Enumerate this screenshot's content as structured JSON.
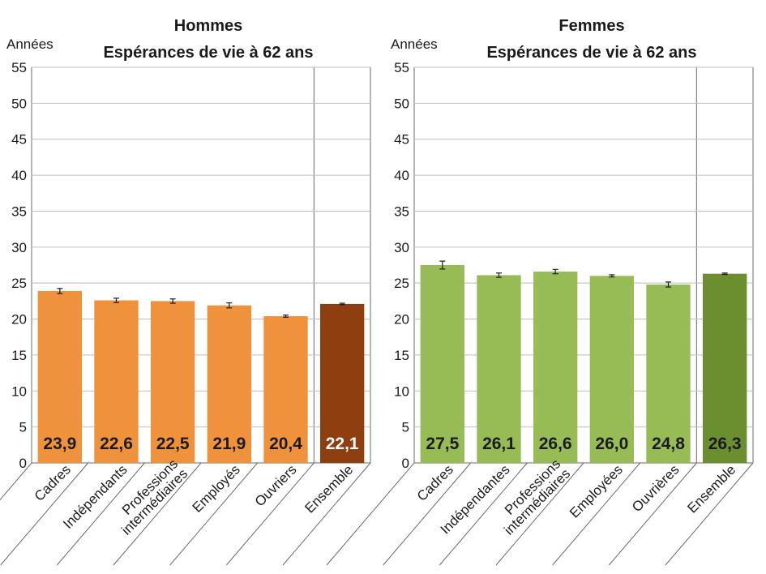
{
  "chart_data": [
    {
      "type": "bar",
      "title_line1": "Hommes",
      "title_line2": "Espérances de vie à 62 ans",
      "ylabel": "Années",
      "ylim": [
        0,
        55
      ],
      "yticks": [
        0,
        5,
        10,
        15,
        20,
        25,
        30,
        35,
        40,
        45,
        50,
        55
      ],
      "categories": [
        "Cadres",
        "Indépendants",
        "Professions intermédiaires",
        "Employés",
        "Ouvriers",
        "Ensemble"
      ],
      "category_lines": [
        [
          "Cadres"
        ],
        [
          "Indépendants"
        ],
        [
          "Professions",
          "intermédiaires"
        ],
        [
          "Employés"
        ],
        [
          "Ouvriers"
        ],
        [
          "Ensemble"
        ]
      ],
      "values": [
        23.9,
        22.6,
        22.5,
        21.9,
        20.4,
        22.1
      ],
      "value_labels": [
        "23,9",
        "22,6",
        "22,5",
        "21,9",
        "20,4",
        "22,1"
      ],
      "error": [
        0.35,
        0.3,
        0.3,
        0.35,
        0.15,
        0.1
      ],
      "bar_color": "#f0923b",
      "total_color": "#8f3e0f",
      "total_label_color": "#ffffff"
    },
    {
      "type": "bar",
      "title_line1": "Femmes",
      "title_line2": "Espérances de vie à 62 ans",
      "ylabel": "Années",
      "ylim": [
        0,
        55
      ],
      "yticks": [
        0,
        5,
        10,
        15,
        20,
        25,
        30,
        35,
        40,
        45,
        50,
        55
      ],
      "categories": [
        "Cadres",
        "Indépendantes",
        "Professions intermédiaires",
        "Employées",
        "Ouvrières",
        "Ensemble"
      ],
      "category_lines": [
        [
          "Cadres"
        ],
        [
          "Indépendantes"
        ],
        [
          "Professions",
          "intermédiaires"
        ],
        [
          "Employées"
        ],
        [
          "Ouvrières"
        ],
        [
          "Ensemble"
        ]
      ],
      "values": [
        27.5,
        26.1,
        26.6,
        26.0,
        24.8,
        26.3
      ],
      "value_labels": [
        "27,5",
        "26,1",
        "26,6",
        "26,0",
        "24,8",
        "26,3"
      ],
      "error": [
        0.55,
        0.3,
        0.3,
        0.15,
        0.35,
        0.1
      ],
      "bar_color": "#97bb55",
      "total_color": "#6b8e2e",
      "total_label_color": "#1a1a1a"
    }
  ]
}
